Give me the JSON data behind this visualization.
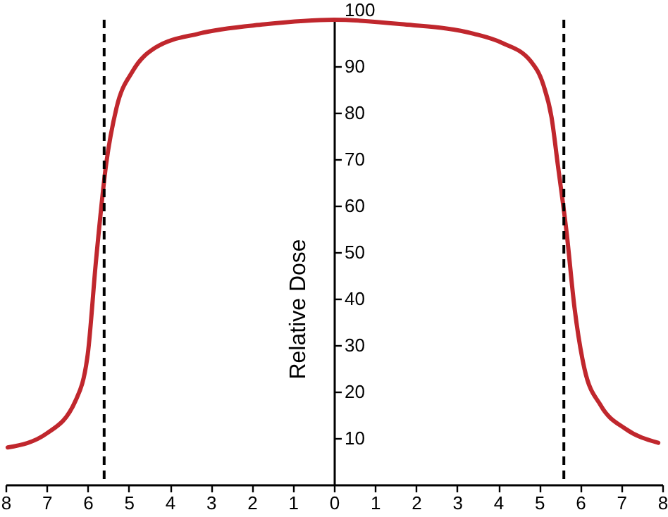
{
  "chart_data": {
    "type": "line",
    "ylabel": "Relative Dose",
    "series": [
      {
        "color": "#c0272d",
        "x": [
          -7.95,
          -7.0,
          -6.3,
          -6.0,
          -5.8,
          -5.55,
          -5.3,
          -4.9,
          -4.35,
          -3.3,
          -1.7,
          0,
          1.7,
          3.4,
          4.1,
          4.8,
          5.1,
          5.3,
          5.45,
          5.67,
          5.86,
          6.1,
          6.5,
          7.1,
          7.9
        ],
        "values": [
          8,
          11,
          18,
          28,
          48,
          69,
          81,
          89,
          94,
          97,
          99,
          100,
          99,
          97,
          95,
          91,
          86,
          79,
          69,
          54,
          38,
          25,
          17,
          12,
          9
        ]
      }
    ],
    "xlim": [
      -8,
      8
    ],
    "ylim": [
      0,
      100
    ],
    "xticks": [
      {
        "value": -8,
        "label": "8"
      },
      {
        "value": -7,
        "label": "7"
      },
      {
        "value": -6,
        "label": "6"
      },
      {
        "value": -5,
        "label": "5"
      },
      {
        "value": -4,
        "label": "4"
      },
      {
        "value": -3,
        "label": "3"
      },
      {
        "value": -2,
        "label": "2"
      },
      {
        "value": -1,
        "label": "1"
      },
      0,
      1,
      2,
      3,
      4,
      5,
      6,
      7,
      8
    ],
    "yticks": [
      10,
      20,
      30,
      40,
      50,
      60,
      70,
      80,
      90,
      100
    ],
    "ref_lines": [
      {
        "axis": "x",
        "value": -5.6,
        "line_style": "dashed",
        "color": "#000000"
      },
      {
        "axis": "x",
        "value": 5.6,
        "line_style": "dashed",
        "color": "#000000"
      }
    ],
    "grid": false,
    "marker": "none",
    "line_style": "solid"
  }
}
